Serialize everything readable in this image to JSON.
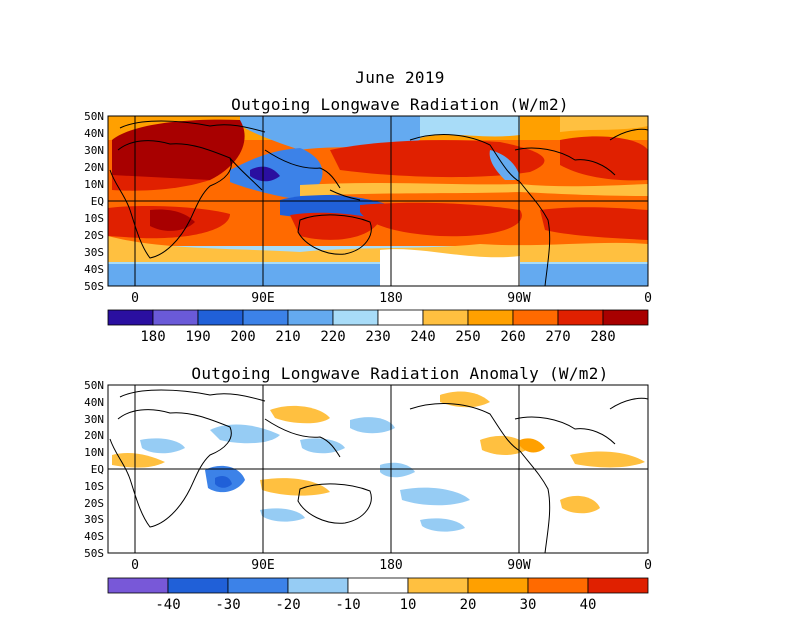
{
  "top_panel": {
    "month_title": "June 2019",
    "title": "Outgoing Longwave Radiation (W/m2)",
    "lat_labels": [
      "50N",
      "40N",
      "30N",
      "20N",
      "10N",
      "EQ",
      "10S",
      "20S",
      "30S",
      "40S",
      "50S"
    ],
    "lon_labels": [
      "0",
      "90E",
      "180",
      "90W",
      "0"
    ],
    "colorbar_labels": [
      "180",
      "190",
      "200",
      "210",
      "220",
      "230",
      "240",
      "250",
      "260",
      "270",
      "280"
    ],
    "colorbar_colors": [
      "#2a0fa0",
      "#6a5ad8",
      "#2060d8",
      "#3c82e8",
      "#64aaf0",
      "#a8dcf8",
      "#ffffff",
      "#ffc040",
      "#ffa000",
      "#ff6a00",
      "#e02000",
      "#a80000"
    ]
  },
  "bottom_panel": {
    "title": "Outgoing Longwave Radiation Anomaly (W/m2)",
    "lat_labels": [
      "50N",
      "40N",
      "30N",
      "20N",
      "10N",
      "EQ",
      "10S",
      "20S",
      "30S",
      "40S",
      "50S"
    ],
    "lon_labels": [
      "0",
      "90E",
      "180",
      "90W",
      "0"
    ],
    "colorbar_labels": [
      "-40",
      "-30",
      "-20",
      "-10",
      "10",
      "20",
      "30",
      "40"
    ],
    "colorbar_colors": [
      "#7858d8",
      "#2060d8",
      "#3c82e8",
      "#96ccf4",
      "#ffffff",
      "#ffc040",
      "#ffa000",
      "#ff6a00",
      "#e02000"
    ]
  }
}
